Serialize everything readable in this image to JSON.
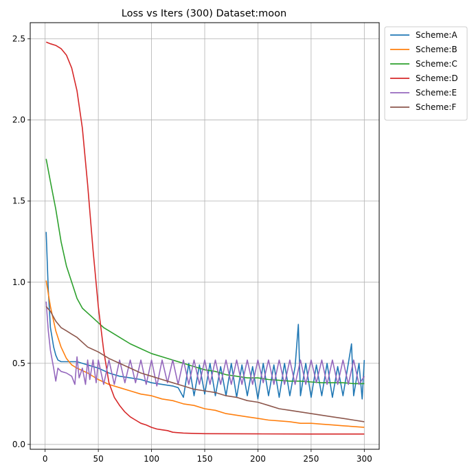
{
  "chart_data": {
    "type": "line",
    "title": "Loss vs Iters (300) Dataset:moon",
    "xlabel": "",
    "ylabel": "",
    "xlim": [
      -14,
      314
    ],
    "ylim": [
      -0.03,
      2.6
    ],
    "xticks": [
      0,
      50,
      100,
      150,
      200,
      250,
      300
    ],
    "yticks": [
      0.0,
      0.5,
      1.0,
      1.5,
      2.0,
      2.5
    ],
    "xtick_labels": [
      "0",
      "50",
      "100",
      "150",
      "200",
      "250",
      "300"
    ],
    "ytick_labels": [
      "0.0",
      "0.5",
      "1.0",
      "1.5",
      "2.0",
      "2.5"
    ],
    "grid": true,
    "legend_position": "outside-upper-right",
    "series": [
      {
        "name": "Scheme:A",
        "color": "#1f77b4",
        "x": [
          1,
          3,
          5,
          8,
          10,
          12,
          15,
          20,
          25,
          30,
          35,
          40,
          50,
          60,
          70,
          80,
          90,
          100,
          110,
          120,
          125,
          130,
          135,
          140,
          145,
          150,
          155,
          160,
          165,
          170,
          175,
          180,
          185,
          190,
          195,
          200,
          205,
          210,
          215,
          220,
          225,
          230,
          235,
          238,
          240,
          245,
          250,
          255,
          260,
          265,
          270,
          275,
          280,
          285,
          288,
          290,
          295,
          298,
          300
        ],
        "y": [
          1.31,
          0.95,
          0.72,
          0.6,
          0.55,
          0.52,
          0.51,
          0.51,
          0.51,
          0.51,
          0.5,
          0.49,
          0.47,
          0.44,
          0.42,
          0.41,
          0.4,
          0.38,
          0.37,
          0.36,
          0.35,
          0.29,
          0.5,
          0.3,
          0.49,
          0.31,
          0.5,
          0.3,
          0.48,
          0.3,
          0.5,
          0.29,
          0.49,
          0.3,
          0.48,
          0.28,
          0.5,
          0.3,
          0.49,
          0.29,
          0.5,
          0.3,
          0.48,
          0.74,
          0.3,
          0.5,
          0.29,
          0.49,
          0.3,
          0.5,
          0.29,
          0.48,
          0.3,
          0.5,
          0.62,
          0.3,
          0.5,
          0.28,
          0.52
        ]
      },
      {
        "name": "Scheme:B",
        "color": "#ff7f0e",
        "x": [
          1,
          5,
          10,
          15,
          20,
          25,
          30,
          40,
          50,
          60,
          70,
          80,
          90,
          100,
          110,
          120,
          130,
          140,
          150,
          160,
          170,
          180,
          190,
          200,
          210,
          220,
          230,
          240,
          250,
          260,
          270,
          280,
          290,
          300
        ],
        "y": [
          1.01,
          0.85,
          0.7,
          0.6,
          0.53,
          0.49,
          0.47,
          0.44,
          0.4,
          0.37,
          0.35,
          0.33,
          0.31,
          0.3,
          0.28,
          0.27,
          0.25,
          0.24,
          0.22,
          0.21,
          0.19,
          0.18,
          0.17,
          0.16,
          0.15,
          0.145,
          0.14,
          0.13,
          0.13,
          0.125,
          0.12,
          0.115,
          0.11,
          0.105
        ]
      },
      {
        "name": "Scheme:C",
        "color": "#2ca02c",
        "x": [
          1,
          5,
          10,
          15,
          20,
          25,
          30,
          35,
          40,
          45,
          50,
          55,
          60,
          70,
          80,
          90,
          100,
          110,
          120,
          130,
          140,
          150,
          160,
          170,
          180,
          190,
          200,
          210,
          220,
          230,
          240,
          250,
          260,
          270,
          280,
          290,
          300
        ],
        "y": [
          1.76,
          1.62,
          1.45,
          1.25,
          1.1,
          1.0,
          0.9,
          0.84,
          0.81,
          0.78,
          0.75,
          0.72,
          0.7,
          0.66,
          0.62,
          0.59,
          0.56,
          0.54,
          0.52,
          0.5,
          0.48,
          0.46,
          0.45,
          0.43,
          0.42,
          0.41,
          0.41,
          0.4,
          0.395,
          0.39,
          0.39,
          0.385,
          0.38,
          0.38,
          0.38,
          0.375,
          0.375
        ]
      },
      {
        "name": "Scheme:D",
        "color": "#d62728",
        "x": [
          1,
          5,
          10,
          15,
          20,
          25,
          30,
          35,
          40,
          45,
          50,
          55,
          60,
          65,
          70,
          75,
          80,
          85,
          90,
          95,
          100,
          105,
          110,
          115,
          120,
          130,
          140,
          150,
          200,
          250,
          300
        ],
        "y": [
          2.48,
          2.47,
          2.46,
          2.44,
          2.4,
          2.32,
          2.18,
          1.95,
          1.6,
          1.2,
          0.85,
          0.58,
          0.38,
          0.29,
          0.24,
          0.2,
          0.17,
          0.15,
          0.13,
          0.12,
          0.105,
          0.095,
          0.09,
          0.085,
          0.075,
          0.07,
          0.068,
          0.066,
          0.065,
          0.064,
          0.064
        ]
      },
      {
        "name": "Scheme:E",
        "color": "#9467bd",
        "x": [
          1,
          3,
          5,
          8,
          10,
          12,
          15,
          20,
          25,
          28,
          30,
          32,
          35,
          38,
          40,
          42,
          45,
          48,
          50,
          55,
          60,
          65,
          70,
          75,
          80,
          85,
          90,
          95,
          100,
          105,
          110,
          115,
          120,
          125,
          130,
          135,
          140,
          145,
          150,
          155,
          160,
          165,
          170,
          175,
          180,
          185,
          190,
          195,
          200,
          205,
          210,
          215,
          220,
          225,
          230,
          235,
          240,
          245,
          250,
          255,
          260,
          265,
          270,
          275,
          280,
          285,
          290,
          295,
          300
        ],
        "y": [
          0.88,
          0.7,
          0.58,
          0.47,
          0.39,
          0.47,
          0.45,
          0.44,
          0.42,
          0.37,
          0.54,
          0.41,
          0.47,
          0.37,
          0.52,
          0.4,
          0.52,
          0.38,
          0.52,
          0.37,
          0.52,
          0.37,
          0.52,
          0.38,
          0.52,
          0.38,
          0.52,
          0.37,
          0.52,
          0.36,
          0.52,
          0.38,
          0.52,
          0.37,
          0.52,
          0.37,
          0.52,
          0.37,
          0.52,
          0.37,
          0.52,
          0.37,
          0.52,
          0.37,
          0.52,
          0.37,
          0.52,
          0.37,
          0.52,
          0.38,
          0.52,
          0.37,
          0.52,
          0.37,
          0.52,
          0.37,
          0.52,
          0.37,
          0.52,
          0.38,
          0.52,
          0.37,
          0.52,
          0.37,
          0.52,
          0.37,
          0.52,
          0.37,
          0.42
        ]
      },
      {
        "name": "Scheme:F",
        "color": "#8c564b",
        "x": [
          1,
          5,
          10,
          15,
          20,
          25,
          30,
          40,
          50,
          60,
          70,
          80,
          90,
          100,
          110,
          120,
          130,
          140,
          150,
          160,
          170,
          180,
          190,
          200,
          210,
          220,
          230,
          240,
          250,
          260,
          270,
          280,
          290,
          300
        ],
        "y": [
          0.85,
          0.82,
          0.76,
          0.72,
          0.7,
          0.68,
          0.66,
          0.6,
          0.57,
          0.53,
          0.5,
          0.47,
          0.44,
          0.42,
          0.4,
          0.38,
          0.36,
          0.34,
          0.33,
          0.32,
          0.3,
          0.29,
          0.27,
          0.26,
          0.24,
          0.22,
          0.21,
          0.2,
          0.19,
          0.18,
          0.17,
          0.16,
          0.15,
          0.14
        ]
      }
    ]
  }
}
